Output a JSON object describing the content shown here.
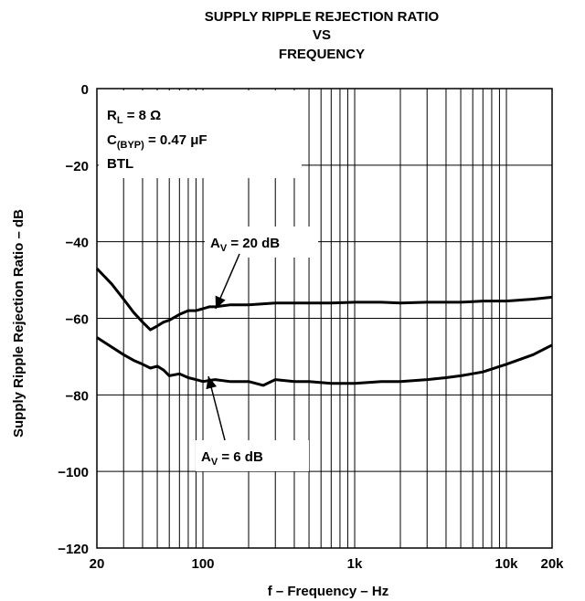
{
  "chart_data": {
    "type": "line",
    "title": [
      "SUPPLY RIPPLE REJECTION RATIO",
      "VS",
      "FREQUENCY"
    ],
    "xlabel": "f – Frequency – Hz",
    "ylabel": "Supply Ripple Rejection Ratio – dB",
    "x_scale": "log",
    "xlim": [
      20,
      20000
    ],
    "ylim": [
      -120,
      0
    ],
    "x_ticks": [
      20,
      100,
      1000,
      10000,
      20000
    ],
    "x_tick_labels": [
      "20",
      "100",
      "1k",
      "10k",
      "20k"
    ],
    "y_ticks": [
      0,
      -20,
      -40,
      -60,
      -80,
      -100,
      -120
    ],
    "y_tick_labels": [
      "0",
      "−20",
      "−40",
      "−60",
      "−80",
      "−100",
      "−120"
    ],
    "grid": true,
    "conditions": [
      {
        "main": "R",
        "sub": "L",
        "rest": " = 8 Ω"
      },
      {
        "main": "C",
        "sub": "(BYP)",
        "rest": " = 0.47 μF"
      },
      {
        "main": "BTL",
        "sub": "",
        "rest": ""
      }
    ],
    "series": [
      {
        "name": "AV = 20 dB",
        "label": {
          "main": "A",
          "sub": "V",
          "rest": " = 20 dB"
        },
        "x": [
          20,
          25,
          30,
          35,
          40,
          45,
          50,
          55,
          60,
          70,
          80,
          90,
          100,
          110,
          120,
          150,
          200,
          300,
          400,
          500,
          700,
          1000,
          1500,
          2000,
          3000,
          5000,
          7000,
          10000,
          15000,
          20000
        ],
        "y": [
          -47,
          -51,
          -55,
          -58.5,
          -61,
          -63,
          -62,
          -61,
          -60.5,
          -59,
          -58,
          -58,
          -57.5,
          -57,
          -57,
          -56.5,
          -56.5,
          -56,
          -56,
          -56,
          -56,
          -55.8,
          -55.8,
          -56,
          -55.8,
          -55.8,
          -55.5,
          -55.5,
          -55,
          -54.5
        ]
      },
      {
        "name": "AV = 6 dB",
        "label": {
          "main": "A",
          "sub": "V",
          "rest": " = 6 dB"
        },
        "x": [
          20,
          25,
          30,
          35,
          40,
          45,
          50,
          55,
          60,
          70,
          80,
          90,
          100,
          120,
          150,
          200,
          250,
          300,
          400,
          500,
          700,
          1000,
          1500,
          2000,
          3000,
          4000,
          5000,
          7000,
          10000,
          15000,
          20000
        ],
        "y": [
          -65,
          -67.5,
          -69.5,
          -71,
          -72,
          -73,
          -72.5,
          -73.5,
          -75,
          -74.5,
          -75.5,
          -76,
          -76.5,
          -76,
          -76.5,
          -76.5,
          -77.5,
          -76,
          -76.5,
          -76.5,
          -77,
          -77,
          -76.5,
          -76.5,
          -76,
          -75.5,
          -75,
          -74,
          -72,
          -69.5,
          -67
        ]
      }
    ]
  }
}
